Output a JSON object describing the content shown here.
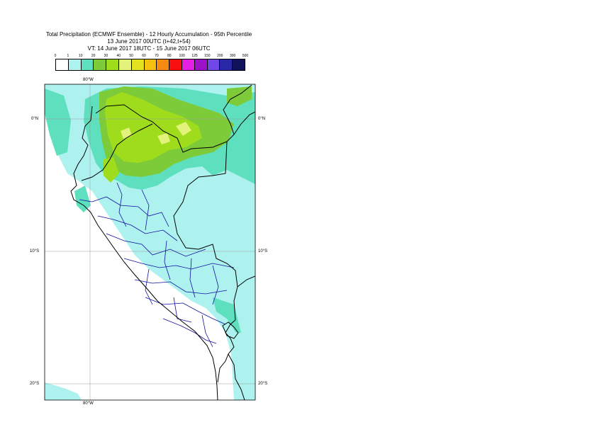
{
  "title": {
    "line1": "Total Precipitation (ECMWF Ensemble) - 12 Hourly Accumulation - 95th Percentile",
    "line2": "13 June 2017 00UTC (t+42,t+54)",
    "line3": "VT: 14 June 2017 18UTC - 15 June 2017 06UTC"
  },
  "legend": {
    "labels": [
      "0",
      "1",
      "10",
      "20",
      "30",
      "40",
      "50",
      "60",
      "70",
      "80",
      "100",
      "125",
      "150",
      "200",
      "300",
      "500"
    ],
    "colors": [
      "#ffffff",
      "#aef2ef",
      "#5ee0bf",
      "#7ecb3a",
      "#9fdd1c",
      "#e3f27a",
      "#e2e31e",
      "#f5c00f",
      "#f78a10",
      "#fa1010",
      "#e520e5",
      "#9b12c8",
      "#7148e8",
      "#2828a8",
      "#12125a"
    ]
  },
  "axes": {
    "top_lon": "80°W",
    "bottom_lon": "80°W",
    "left_lat": [
      "0°N",
      "10°S",
      "20°S"
    ],
    "right_lat": [
      "0°N",
      "10°S",
      "20°S"
    ]
  },
  "map_colors": {
    "water": "#ffffff",
    "light": "#aef2ef",
    "mid": "#5ee0bf",
    "green": "#7ecb3a",
    "bright": "#9fdd1c",
    "pale": "#e3f27a",
    "border_country": "#000000",
    "border_province": "#1010a0"
  }
}
